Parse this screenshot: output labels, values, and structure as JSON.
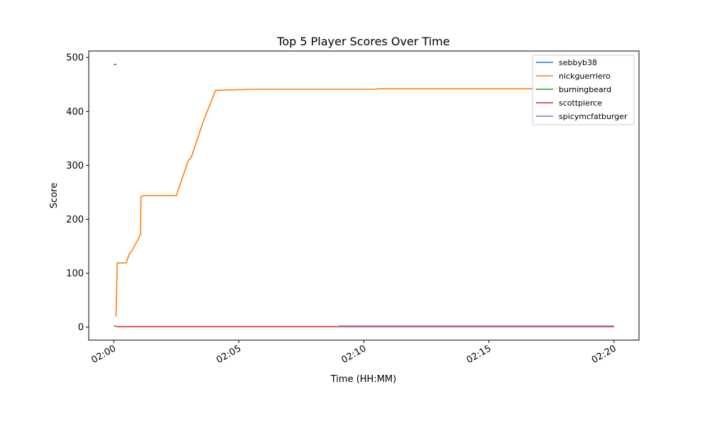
{
  "chart_data": {
    "type": "line",
    "title": "Top 5 Player Scores Over Time",
    "xlabel": "Time (HH:MM)",
    "ylabel": "Score",
    "x_unit": "minutes after 02:00",
    "xlim": [
      -1.0,
      21.0
    ],
    "ylim": [
      -24,
      512
    ],
    "x_ticks": [
      {
        "value": 0,
        "label": "02:00"
      },
      {
        "value": 5,
        "label": "02:05"
      },
      {
        "value": 10,
        "label": "02:10"
      },
      {
        "value": 15,
        "label": "02:15"
      },
      {
        "value": 20,
        "label": "02:20"
      }
    ],
    "y_ticks": [
      0,
      100,
      200,
      300,
      400,
      500
    ],
    "grid": false,
    "legend_position": "top-right",
    "series": [
      {
        "name": "sebbyb38",
        "color": "#1f77b4",
        "points": [
          [
            0.0,
            487
          ],
          [
            0.1,
            487
          ]
        ]
      },
      {
        "name": "nickguerriero",
        "color": "#ff7f0e",
        "points": [
          [
            0.09,
            20
          ],
          [
            0.14,
            119
          ],
          [
            0.5,
            119
          ],
          [
            0.62,
            136
          ],
          [
            0.71,
            140
          ],
          [
            0.85,
            153
          ],
          [
            0.96,
            161
          ],
          [
            1.07,
            172
          ],
          [
            1.09,
            242
          ],
          [
            1.21,
            244
          ],
          [
            2.5,
            244
          ],
          [
            2.98,
            309
          ],
          [
            3.1,
            315
          ],
          [
            3.59,
            383
          ],
          [
            4.07,
            439
          ],
          [
            4.59,
            440
          ],
          [
            5.63,
            441
          ],
          [
            10.5,
            441
          ],
          [
            10.55,
            442
          ],
          [
            20.0,
            442
          ]
        ]
      },
      {
        "name": "burningbeard",
        "color": "#2ca02c",
        "points": [
          [
            0.0,
            2
          ],
          [
            0.1,
            2
          ]
        ]
      },
      {
        "name": "scottpierce",
        "color": "#d62728",
        "points": [
          [
            0.1,
            1
          ],
          [
            20.0,
            1
          ]
        ]
      },
      {
        "name": "spicymcfatburger",
        "color": "#9467bd",
        "points": [
          [
            9.0,
            2
          ],
          [
            20.0,
            2
          ]
        ]
      }
    ]
  }
}
